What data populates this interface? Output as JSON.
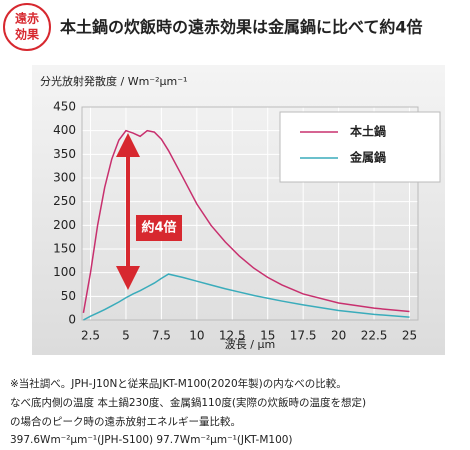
{
  "header": {
    "badge": [
      "遠赤",
      "効果"
    ],
    "title": "本土鍋の炊飯時の遠赤効果は金属鍋に比べて約4倍"
  },
  "chart_data": {
    "type": "line",
    "y_label": "分光放射発散度 / Wm⁻²μm⁻¹",
    "x_label": "波長 / μm",
    "annotation": "約4倍",
    "x": [
      2,
      2.5,
      3,
      3.5,
      4,
      4.5,
      5,
      5.5,
      6,
      6.5,
      7,
      7.5,
      8,
      9,
      10,
      11,
      12,
      13,
      14,
      15,
      16,
      17.5,
      20,
      22.5,
      25
    ],
    "series": [
      {
        "name": "本土鍋",
        "color": "#c8306e",
        "values": [
          15,
          100,
          200,
          280,
          340,
          380,
          400,
          395,
          388,
          400,
          397,
          382,
          358,
          302,
          245,
          200,
          165,
          135,
          110,
          90,
          74,
          55,
          36,
          25,
          18
        ]
      },
      {
        "name": "金属鍋",
        "color": "#3aacbb",
        "values": [
          0,
          8,
          15,
          22,
          30,
          38,
          47,
          55,
          62,
          70,
          78,
          88,
          97,
          90,
          82,
          74,
          66,
          59,
          52,
          46,
          40,
          32,
          20,
          12,
          6
        ]
      }
    ],
    "xlim": [
      1.9,
      25.6
    ],
    "xticks": [
      2.5,
      5,
      7.5,
      10,
      12.5,
      15,
      17.5,
      20,
      22.5,
      25
    ],
    "ylim": [
      0,
      450
    ],
    "yticks": [
      0,
      50,
      100,
      150,
      200,
      250,
      300,
      350,
      400,
      450
    ],
    "grid": true
  },
  "notes": [
    "※当社調べ。JPH-J10Nと従来品JKT-M100(2020年製)の内なべの比較。",
    "なべ底内側の温度 本土鍋230度、金属鍋110度(実際の炊飯時の温度を想定)",
    "の場合のピーク時の遠赤放射エネルギー量比較。",
    "397.6Wm⁻²μm⁻¹(JPH-S100) 97.7Wm⁻²μm⁻¹(JKT-M100)"
  ]
}
